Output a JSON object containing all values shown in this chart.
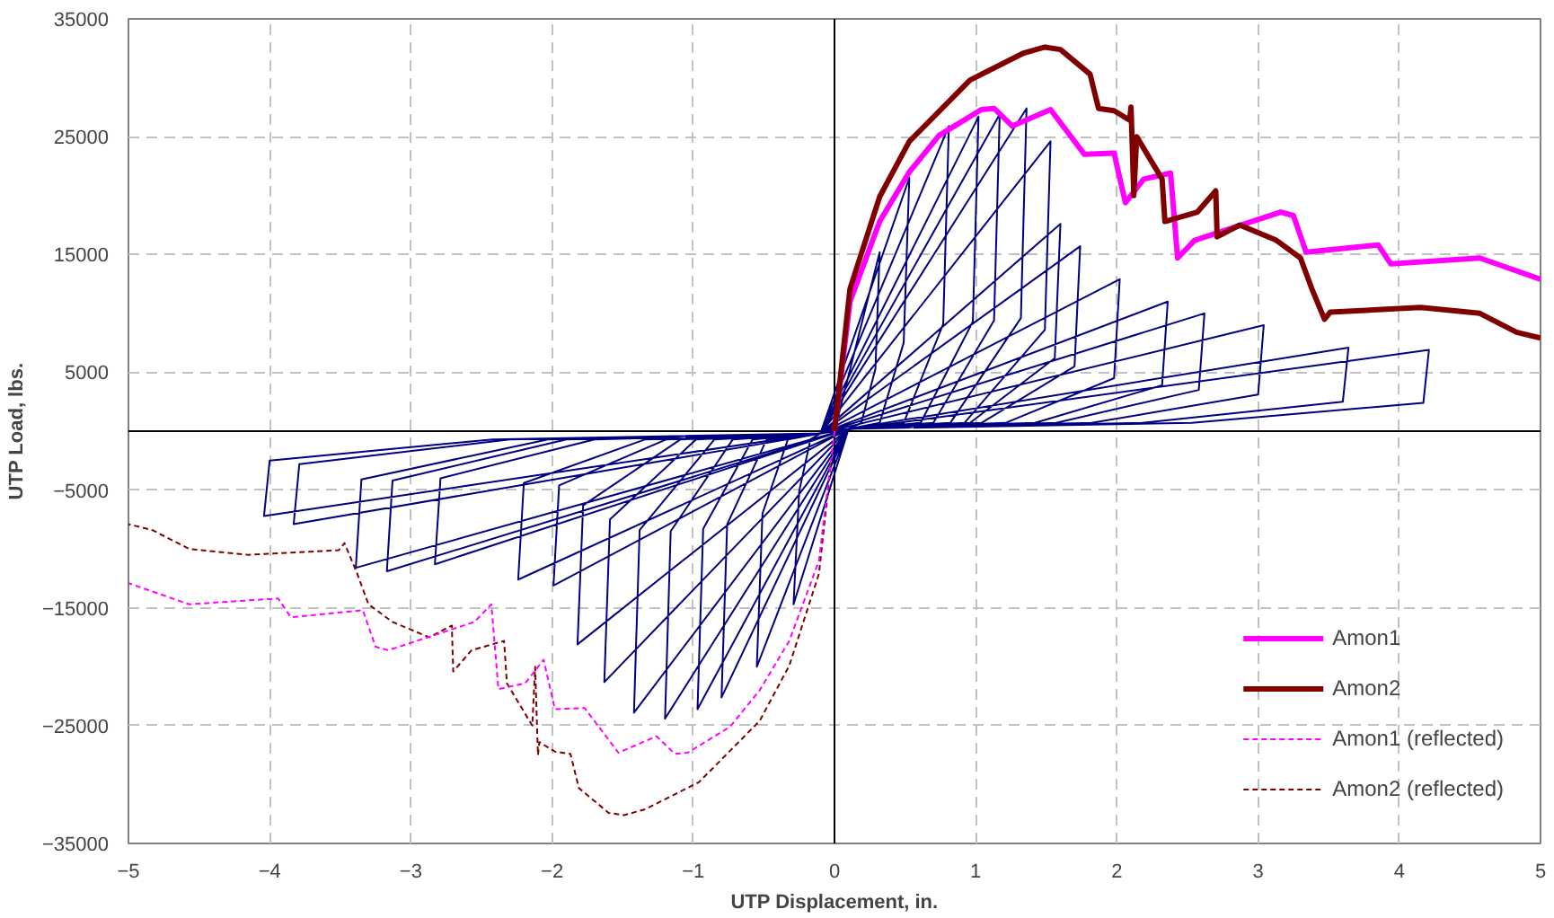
{
  "chart_data": {
    "type": "line",
    "xlabel": "UTP Displacement, in.",
    "ylabel": "UTP Load, lbs.",
    "xlim": [
      -5,
      5
    ],
    "xticks": [
      -5,
      -4,
      -3,
      -2,
      -1,
      0,
      1,
      2,
      3,
      4,
      5
    ],
    "ylim": [
      -35000,
      35000
    ],
    "yticks": [
      -35000,
      -25000,
      -15000,
      -5000,
      5000,
      15000,
      25000,
      35000
    ],
    "grid": true,
    "legend": "bottom right",
    "marker": "none",
    "series": [
      {
        "color": "#000080",
        "line_style": "solid",
        "x": [
          0,
          0.32,
          0.29,
          0.19,
          0.1,
          -0.29,
          -0.25,
          -0.17,
          -0.1,
          0.53,
          0.49,
          0.32,
          0.1,
          -0.55,
          -0.51,
          -0.33,
          -0.1,
          0.81,
          0.77,
          0.49,
          0.1,
          -0.8,
          -0.76,
          -0.48,
          -0.1,
          1.02,
          0.98,
          0.61,
          0.1,
          -0.97,
          -0.93,
          -0.58,
          -0.1,
          1.17,
          1.13,
          0.7,
          0.1,
          -1.2,
          -1.16,
          -0.72,
          -0.1,
          1.36,
          1.32,
          0.82,
          0.1,
          -1.42,
          -1.38,
          -0.85,
          -0.1,
          1.53,
          1.49,
          0.92,
          0.1,
          -1.63,
          -1.59,
          -0.98,
          -0.1,
          1.6,
          1.56,
          0.96,
          0.1,
          -1.82,
          -1.78,
          -1.09,
          -0.1,
          1.74,
          1.7,
          1.04,
          0.1,
          -1.99,
          -1.95,
          -1.19,
          -0.1,
          2.02,
          1.98,
          1.21,
          0.1,
          -2.24,
          -2.2,
          -1.34,
          -0.1,
          2.36,
          2.32,
          1.42,
          0.1,
          -2.83,
          -2.79,
          -1.7,
          -0.1,
          2.62,
          2.58,
          1.57,
          0.1,
          -3.17,
          -3.13,
          -1.9,
          -0.1,
          3.04,
          3.0,
          1.82,
          0.1,
          -3.39,
          -3.35,
          -2.03,
          -0.1,
          3.64,
          3.6,
          2.18,
          0.1,
          -3.83,
          -3.79,
          -2.3,
          -0.1,
          4.21,
          4.17,
          2.53,
          0.1,
          -4.04,
          -4.0,
          -2.42,
          -0.1
        ],
        "values": [
          0,
          15200,
          5300,
          700,
          200,
          -14700,
          -5100,
          -700,
          -200,
          21500,
          7500,
          700,
          200,
          -20000,
          -7000,
          -700,
          -200,
          25900,
          9100,
          700,
          200,
          -22600,
          -7900,
          -700,
          -200,
          26700,
          9300,
          700,
          200,
          -23600,
          -8300,
          -700,
          -200,
          26900,
          9400,
          700,
          200,
          -24400,
          -8500,
          -700,
          -200,
          27400,
          9600,
          700,
          200,
          -23900,
          -8400,
          -700,
          -200,
          24600,
          8600,
          700,
          200,
          -21300,
          -7500,
          -700,
          -200,
          17600,
          6200,
          700,
          200,
          -18100,
          -6300,
          -700,
          -200,
          15700,
          5500,
          700,
          200,
          -13100,
          -4600,
          -700,
          -200,
          12900,
          4500,
          700,
          200,
          -12600,
          -4400,
          -700,
          -200,
          11000,
          3900,
          700,
          200,
          -11300,
          -4000,
          -700,
          -200,
          10000,
          3500,
          700,
          200,
          -11900,
          -4200,
          -700,
          -200,
          9000,
          3100,
          700,
          200,
          -11600,
          -4100,
          -700,
          -200,
          7100,
          2500,
          700,
          200,
          -7900,
          -2800,
          -700,
          -200,
          6900,
          2400,
          700,
          200,
          -7200,
          -2500,
          -700,
          -200
        ]
      },
      {
        "name": "Amon1",
        "color": "#ff00ff",
        "line_style": "solid",
        "x": [
          0,
          0.11,
          0.32,
          0.53,
          0.74,
          1.04,
          1.13,
          1.26,
          1.53,
          1.77,
          1.98,
          2.06,
          2.19,
          2.38,
          2.43,
          2.55,
          3.16,
          3.25,
          3.34,
          3.85,
          3.94,
          4.57,
          5.0
        ],
        "values": [
          0,
          11000,
          17800,
          22000,
          25100,
          27300,
          27400,
          25900,
          27300,
          23500,
          23600,
          19400,
          21400,
          21900,
          14700,
          16200,
          18600,
          18300,
          15200,
          15800,
          14200,
          14700,
          12900
        ]
      },
      {
        "name": "Amon2",
        "color": "#800000",
        "line_style": "solid",
        "x": [
          0,
          0.11,
          0.32,
          0.53,
          0.96,
          1.34,
          1.49,
          1.6,
          1.81,
          1.87,
          1.98,
          2.09,
          2.1,
          2.12,
          2.14,
          2.32,
          2.34,
          2.57,
          2.7,
          2.71,
          2.87,
          3.13,
          3.3,
          3.38,
          3.47,
          3.51,
          4.15,
          4.57,
          4.83,
          5.0
        ],
        "values": [
          0,
          12100,
          19900,
          24600,
          29800,
          32100,
          32600,
          32400,
          30300,
          27400,
          27200,
          26400,
          27500,
          20000,
          25000,
          21400,
          17800,
          18600,
          20400,
          16500,
          17500,
          16200,
          14700,
          12100,
          9500,
          10100,
          10500,
          10000,
          8400,
          7900
        ]
      },
      {
        "name": "Amon1 (reflected)",
        "color": "#ff00ff",
        "line_style": "dashed",
        "x": [
          0,
          -0.11,
          -0.32,
          -0.53,
          -0.74,
          -1.04,
          -1.13,
          -1.26,
          -1.53,
          -1.77,
          -1.98,
          -2.06,
          -2.19,
          -2.38,
          -2.43,
          -2.55,
          -3.16,
          -3.25,
          -3.34,
          -3.85,
          -3.94,
          -4.57,
          -5.0
        ],
        "values": [
          0,
          -11000,
          -17800,
          -22000,
          -25100,
          -27300,
          -27400,
          -25900,
          -27300,
          -23500,
          -23600,
          -19400,
          -21400,
          -21900,
          -14700,
          -16200,
          -18600,
          -18300,
          -15200,
          -15800,
          -14200,
          -14700,
          -12900
        ]
      },
      {
        "name": "Amon2 (reflected)",
        "color": "#800000",
        "line_style": "dashed",
        "x": [
          0,
          -0.11,
          -0.32,
          -0.53,
          -0.96,
          -1.34,
          -1.49,
          -1.6,
          -1.81,
          -1.87,
          -1.98,
          -2.09,
          -2.1,
          -2.12,
          -2.14,
          -2.32,
          -2.34,
          -2.57,
          -2.7,
          -2.71,
          -2.87,
          -3.13,
          -3.3,
          -3.38,
          -3.47,
          -3.51,
          -4.15,
          -4.57,
          -4.83,
          -5.0
        ],
        "values": [
          0,
          -12100,
          -19900,
          -24600,
          -29800,
          -32100,
          -32600,
          -32400,
          -30300,
          -27400,
          -27200,
          -26400,
          -27500,
          -20000,
          -25000,
          -21400,
          -17800,
          -18600,
          -20400,
          -16500,
          -17500,
          -16200,
          -14700,
          -12100,
          -9500,
          -10100,
          -10500,
          -10000,
          -8400,
          -7900
        ]
      }
    ]
  }
}
